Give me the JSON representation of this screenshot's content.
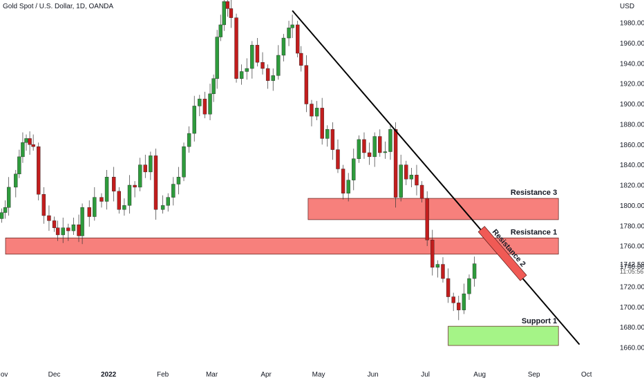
{
  "chart_data": {
    "type": "candlestick",
    "title": "Gold Spot / U.S. Dollar, 1D, OANDA",
    "currency": "USD",
    "ylim": [
      1653,
      1990
    ],
    "y_ticks": [
      1660,
      1680,
      1700,
      1720,
      1740,
      1760,
      1780,
      1800,
      1820,
      1840,
      1860,
      1880,
      1900,
      1920,
      1940,
      1960,
      1980
    ],
    "y_tick_labels": [
      "1660.000",
      "1680.000",
      "1700.000",
      "1720.000",
      "1740.000",
      "1760.000",
      "1780.000",
      "1800.000",
      "1820.000",
      "1840.000",
      "1860.000",
      "1880.000",
      "1900.000",
      "1920.000",
      "1940.000",
      "1960.000",
      "1980.000"
    ],
    "x_ticks": [
      {
        "date": "2021-11-01",
        "label": "Nov",
        "bold": false
      },
      {
        "date": "2021-12-01",
        "label": "Dec",
        "bold": false
      },
      {
        "date": "2022-01-01",
        "label": "2022",
        "bold": true
      },
      {
        "date": "2022-02-01",
        "label": "Feb",
        "bold": false
      },
      {
        "date": "2022-03-01",
        "label": "Mar",
        "bold": false
      },
      {
        "date": "2022-04-01",
        "label": "Apr",
        "bold": false
      },
      {
        "date": "2022-05-01",
        "label": "May",
        "bold": false
      },
      {
        "date": "2022-06-01",
        "label": "Jun",
        "bold": false
      },
      {
        "date": "2022-07-01",
        "label": "Jul",
        "bold": false
      },
      {
        "date": "2022-08-01",
        "label": "Aug",
        "bold": false
      },
      {
        "date": "2022-09-01",
        "label": "Sep",
        "bold": false
      },
      {
        "date": "2022-10-01",
        "label": "Oct",
        "bold": false
      }
    ],
    "xlim": [
      "2021-10-31",
      "2022-10-09"
    ],
    "last_price": {
      "value": 1742.59,
      "label": "1742.590",
      "countdown": "11:05:56"
    },
    "closes": [
      {
        "date": "2021-11-01",
        "close": 1793
      },
      {
        "date": "2021-11-03",
        "close": 1798
      },
      {
        "date": "2021-11-05",
        "close": 1818
      },
      {
        "date": "2021-11-09",
        "close": 1831
      },
      {
        "date": "2021-11-11",
        "close": 1848
      },
      {
        "date": "2021-11-13",
        "close": 1862
      },
      {
        "date": "2021-11-15",
        "close": 1866
      },
      {
        "date": "2021-11-17",
        "close": 1860
      },
      {
        "date": "2021-11-19",
        "close": 1858
      },
      {
        "date": "2021-11-22",
        "close": 1811
      },
      {
        "date": "2021-11-25",
        "close": 1790
      },
      {
        "date": "2021-11-28",
        "close": 1785
      },
      {
        "date": "2021-12-01",
        "close": 1778
      },
      {
        "date": "2021-12-03",
        "close": 1771
      },
      {
        "date": "2021-12-06",
        "close": 1778
      },
      {
        "date": "2021-12-09",
        "close": 1775
      },
      {
        "date": "2021-12-12",
        "close": 1781
      },
      {
        "date": "2021-12-15",
        "close": 1770
      },
      {
        "date": "2021-12-17",
        "close": 1798
      },
      {
        "date": "2021-12-21",
        "close": 1789
      },
      {
        "date": "2021-12-24",
        "close": 1808
      },
      {
        "date": "2021-12-28",
        "close": 1804
      },
      {
        "date": "2021-12-31",
        "close": 1828
      },
      {
        "date": "2022-01-04",
        "close": 1814
      },
      {
        "date": "2022-01-07",
        "close": 1796
      },
      {
        "date": "2022-01-10",
        "close": 1800
      },
      {
        "date": "2022-01-13",
        "close": 1820
      },
      {
        "date": "2022-01-16",
        "close": 1818
      },
      {
        "date": "2022-01-19",
        "close": 1840
      },
      {
        "date": "2022-01-22",
        "close": 1833
      },
      {
        "date": "2022-01-25",
        "close": 1849
      },
      {
        "date": "2022-01-28",
        "close": 1796
      },
      {
        "date": "2022-02-01",
        "close": 1800
      },
      {
        "date": "2022-02-04",
        "close": 1808
      },
      {
        "date": "2022-02-07",
        "close": 1821
      },
      {
        "date": "2022-02-10",
        "close": 1828
      },
      {
        "date": "2022-02-13",
        "close": 1858
      },
      {
        "date": "2022-02-16",
        "close": 1871
      },
      {
        "date": "2022-02-19",
        "close": 1898
      },
      {
        "date": "2022-02-22",
        "close": 1905
      },
      {
        "date": "2022-02-25",
        "close": 1890
      },
      {
        "date": "2022-02-28",
        "close": 1910
      },
      {
        "date": "2022-03-02",
        "close": 1925
      },
      {
        "date": "2022-03-04",
        "close": 1966
      },
      {
        "date": "2022-03-06",
        "close": 1978
      },
      {
        "date": "2022-03-08",
        "close": 2001
      },
      {
        "date": "2022-03-10",
        "close": 1994
      },
      {
        "date": "2022-03-12",
        "close": 1985
      },
      {
        "date": "2022-03-15",
        "close": 1925
      },
      {
        "date": "2022-03-18",
        "close": 1932
      },
      {
        "date": "2022-03-21",
        "close": 1935
      },
      {
        "date": "2022-03-24",
        "close": 1958
      },
      {
        "date": "2022-03-27",
        "close": 1941
      },
      {
        "date": "2022-03-30",
        "close": 1935
      },
      {
        "date": "2022-04-02",
        "close": 1923
      },
      {
        "date": "2022-04-05",
        "close": 1928
      },
      {
        "date": "2022-04-08",
        "close": 1948
      },
      {
        "date": "2022-04-11",
        "close": 1965
      },
      {
        "date": "2022-04-14",
        "close": 1975
      },
      {
        "date": "2022-04-16",
        "close": 1978
      },
      {
        "date": "2022-04-19",
        "close": 1950
      },
      {
        "date": "2022-04-21",
        "close": 1938
      },
      {
        "date": "2022-04-24",
        "close": 1900
      },
      {
        "date": "2022-04-27",
        "close": 1888
      },
      {
        "date": "2022-04-30",
        "close": 1896
      },
      {
        "date": "2022-05-03",
        "close": 1866
      },
      {
        "date": "2022-05-06",
        "close": 1875
      },
      {
        "date": "2022-05-09",
        "close": 1855
      },
      {
        "date": "2022-05-12",
        "close": 1836
      },
      {
        "date": "2022-05-15",
        "close": 1812
      },
      {
        "date": "2022-05-18",
        "close": 1825
      },
      {
        "date": "2022-05-21",
        "close": 1846
      },
      {
        "date": "2022-05-24",
        "close": 1865
      },
      {
        "date": "2022-05-27",
        "close": 1852
      },
      {
        "date": "2022-05-30",
        "close": 1848
      },
      {
        "date": "2022-06-02",
        "close": 1868
      },
      {
        "date": "2022-06-05",
        "close": 1852
      },
      {
        "date": "2022-06-08",
        "close": 1853
      },
      {
        "date": "2022-06-11",
        "close": 1875
      },
      {
        "date": "2022-06-14",
        "close": 1808
      },
      {
        "date": "2022-06-17",
        "close": 1840
      },
      {
        "date": "2022-06-20",
        "close": 1826
      },
      {
        "date": "2022-06-23",
        "close": 1830
      },
      {
        "date": "2022-06-26",
        "close": 1820
      },
      {
        "date": "2022-06-29",
        "close": 1807
      },
      {
        "date": "2022-07-02",
        "close": 1766
      },
      {
        "date": "2022-07-05",
        "close": 1739
      },
      {
        "date": "2022-07-08",
        "close": 1742
      },
      {
        "date": "2022-07-11",
        "close": 1728
      },
      {
        "date": "2022-07-14",
        "close": 1710
      },
      {
        "date": "2022-07-17",
        "close": 1704
      },
      {
        "date": "2022-07-20",
        "close": 1697
      },
      {
        "date": "2022-07-23",
        "close": 1713
      },
      {
        "date": "2022-07-26",
        "close": 1728
      },
      {
        "date": "2022-07-29",
        "close": 1742.59
      }
    ],
    "zones": [
      {
        "name": "Resistance 3",
        "low": 1786,
        "high": 1807,
        "start": "2022-04-25",
        "end": "2022-09-15",
        "color": "#f7807c"
      },
      {
        "name": "Resistance 1",
        "low": 1752,
        "high": 1768,
        "start": "2021-10-31",
        "end": "2022-09-15",
        "color": "#f7807c"
      },
      {
        "name": "Support 1",
        "low": 1662,
        "high": 1681,
        "start": "2022-07-14",
        "end": "2022-09-15",
        "color": "#a5f487"
      }
    ],
    "labels": {
      "resistance3": "Resistance 3",
      "resistance1": "Resistance 1",
      "resistance2": "Resistance 2",
      "support1": "Support 1"
    },
    "trendline": {
      "from": {
        "date": "2022-04-16",
        "price": 1992
      },
      "to": {
        "date": "2022-09-27",
        "price": 1663
      },
      "color": "#000000"
    },
    "resistance2_zone": {
      "date_from": "2022-08-02",
      "date_to": "2022-08-26",
      "price": 1778,
      "color": "#f05a55"
    },
    "colors": {
      "up": "#2e9b3c",
      "down": "#c21d1d",
      "text": "#131722",
      "last_price_text": "#131722"
    }
  }
}
